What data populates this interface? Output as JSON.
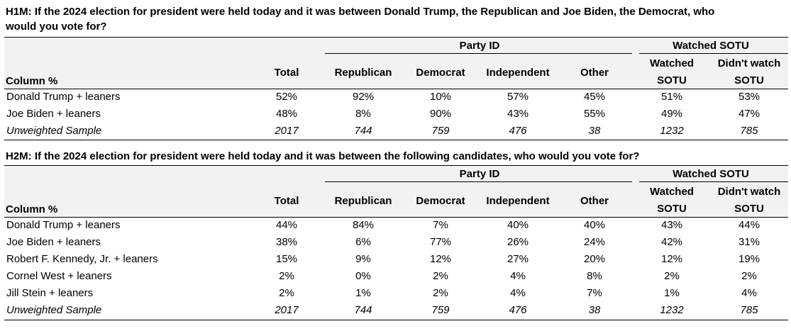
{
  "h1": {
    "question_line1": "H1M: If the 2024 election for president were held today and it was between Donald Trump, the Republican and Joe Biden, the Democrat, who",
    "question_line2": "would you vote for?",
    "header": {
      "group_party": "Party ID",
      "group_sotu": "Watched SOTU",
      "column_label": "Column %",
      "total": "Total",
      "republican": "Republican",
      "democrat": "Democrat",
      "independent": "Independent",
      "other": "Other",
      "watched_l1": "Watched",
      "watched_l2": "SOTU",
      "didnt_l1": "Didn't watch",
      "didnt_l2": "SOTU"
    },
    "rows": [
      {
        "label": "Donald Trump + leaners",
        "values": [
          "52%",
          "92%",
          "10%",
          "57%",
          "45%",
          "51%",
          "53%"
        ]
      },
      {
        "label": "Joe Biden + leaners",
        "values": [
          "48%",
          "8%",
          "90%",
          "43%",
          "55%",
          "49%",
          "47%"
        ]
      }
    ],
    "sample": {
      "label": "Unweighted Sample",
      "values": [
        "2017",
        "744",
        "759",
        "476",
        "38",
        "1232",
        "785"
      ]
    }
  },
  "h2": {
    "question": "H2M: If the 2024 election for president were held today and it was between the following candidates, who would you vote for?",
    "header": {
      "group_party": "Party ID",
      "group_sotu": "Watched SOTU",
      "column_label": "Column %",
      "total": "Total",
      "republican": "Republican",
      "democrat": "Democrat",
      "independent": "Independent",
      "other": "Other",
      "watched_l1": "Watched",
      "watched_l2": "SOTU",
      "didnt_l1": "Didn't watch",
      "didnt_l2": "SOTU"
    },
    "rows": [
      {
        "label": "Donald Trump + leaners",
        "values": [
          "44%",
          "84%",
          "7%",
          "40%",
          "40%",
          "43%",
          "44%"
        ]
      },
      {
        "label": "Joe Biden + leaners",
        "values": [
          "38%",
          "6%",
          "77%",
          "26%",
          "24%",
          "42%",
          "31%"
        ]
      },
      {
        "label": "Robert F. Kennedy, Jr. + leaners",
        "values": [
          "15%",
          "9%",
          "12%",
          "27%",
          "20%",
          "12%",
          "19%"
        ]
      },
      {
        "label": "Cornel West + leaners",
        "values": [
          "2%",
          "0%",
          "2%",
          "4%",
          "8%",
          "2%",
          "2%"
        ]
      },
      {
        "label": "Jill Stein + leaners",
        "values": [
          "2%",
          "1%",
          "2%",
          "4%",
          "7%",
          "1%",
          "4%"
        ]
      }
    ],
    "sample": {
      "label": "Unweighted Sample",
      "values": [
        "2017",
        "744",
        "759",
        "476",
        "38",
        "1232",
        "785"
      ]
    }
  }
}
